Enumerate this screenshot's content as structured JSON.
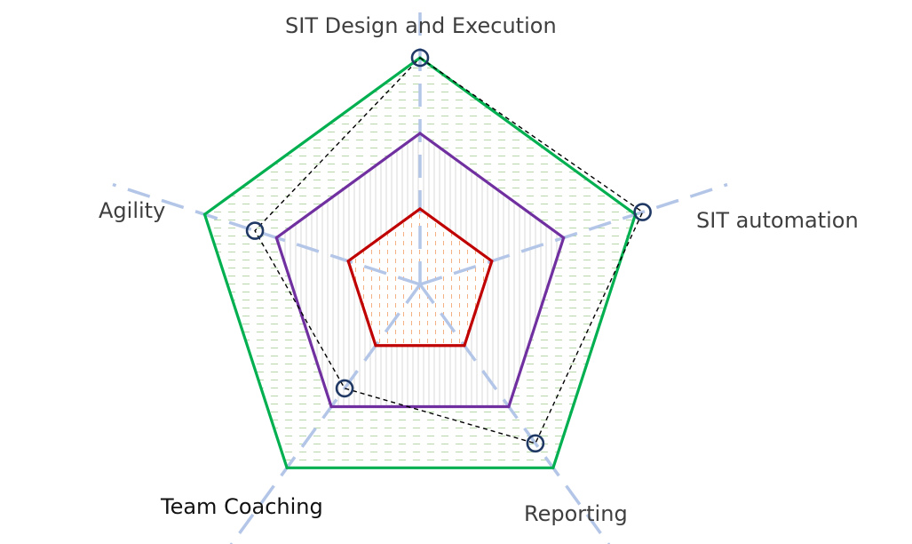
{
  "chart_data": {
    "type": "radar",
    "categories": [
      "SIT Design and Execution",
      "SIT automation",
      "Reporting",
      "Team Coaching",
      "Agility"
    ],
    "rlim": [
      0,
      4
    ],
    "legend": "none",
    "series": [
      {
        "values": [
          1,
          1,
          1,
          1,
          1
        ],
        "color": "#c00000",
        "fill_pattern": "orange-vertical-dashes"
      },
      {
        "values": [
          2,
          2,
          2,
          2,
          2
        ],
        "color": "#7030a0",
        "fill_pattern": "gray-vertical-lines"
      },
      {
        "values": [
          3,
          3,
          3,
          3,
          3
        ],
        "color": "#00b050",
        "fill_pattern": "green-horizontal-dashes"
      },
      {
        "values": [
          3.0,
          3.1,
          2.6,
          1.7,
          2.3
        ],
        "color": "#000000",
        "line_style": "dashed",
        "marker": "circle",
        "marker_color": "#1f3864"
      }
    ],
    "axis_color": "#b4c6e7"
  }
}
